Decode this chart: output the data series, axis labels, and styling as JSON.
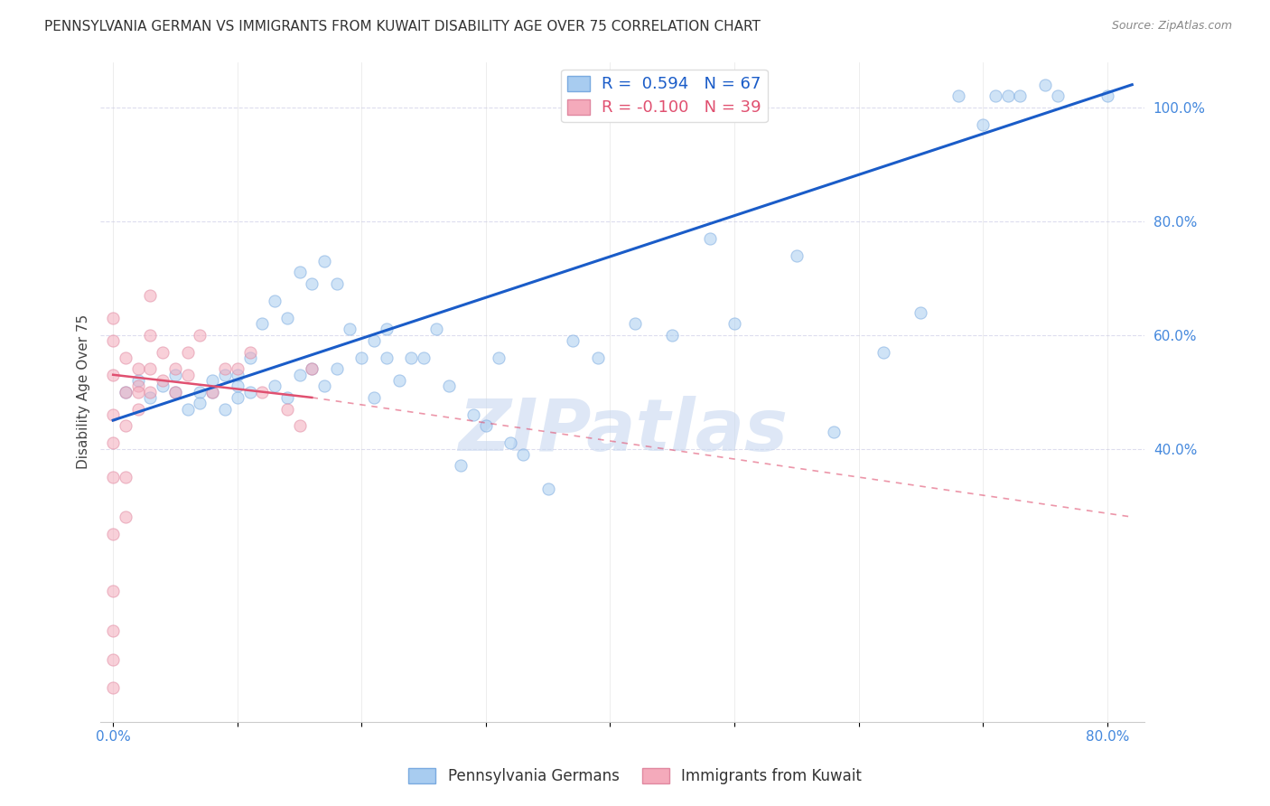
{
  "title": "PENNSYLVANIA GERMAN VS IMMIGRANTS FROM KUWAIT DISABILITY AGE OVER 75 CORRELATION CHART",
  "source": "Source: ZipAtlas.com",
  "ylabel": "Disability Age Over 75",
  "xlim": [
    -1,
    83
  ],
  "ylim": [
    -8,
    108
  ],
  "blue_color": "#A8CCF0",
  "blue_edge_color": "#7AAAE0",
  "pink_color": "#F4AABB",
  "pink_edge_color": "#E088A0",
  "blue_line_color": "#1A5CC8",
  "pink_line_color": "#E05070",
  "legend_text_blue": "R =  0.594   N = 67",
  "legend_text_pink": "R = -0.100   N = 39",
  "legend_label_blue": "Pennsylvania Germans",
  "legend_label_pink": "Immigrants from Kuwait",
  "watermark": "ZIPatlas",
  "watermark_color": "#C8D8F0",
  "title_fontsize": 11,
  "source_fontsize": 9,
  "blue_scatter_x": [
    1,
    2,
    3,
    4,
    5,
    5,
    6,
    7,
    7,
    8,
    8,
    9,
    9,
    10,
    10,
    10,
    11,
    11,
    12,
    13,
    13,
    14,
    14,
    15,
    15,
    16,
    16,
    17,
    17,
    18,
    18,
    19,
    20,
    21,
    21,
    22,
    22,
    23,
    24,
    25,
    26,
    27,
    28,
    29,
    30,
    31,
    32,
    33,
    35,
    37,
    39,
    42,
    45,
    48,
    50,
    55,
    58,
    62,
    65,
    68,
    70,
    71,
    72,
    73,
    75,
    76,
    80
  ],
  "blue_scatter_y": [
    50,
    52,
    49,
    51,
    53,
    50,
    47,
    50,
    48,
    52,
    50,
    53,
    47,
    53,
    51,
    49,
    56,
    50,
    62,
    66,
    51,
    63,
    49,
    71,
    53,
    69,
    54,
    73,
    51,
    69,
    54,
    61,
    56,
    59,
    49,
    61,
    56,
    52,
    56,
    56,
    61,
    51,
    37,
    46,
    44,
    56,
    41,
    39,
    33,
    59,
    56,
    62,
    60,
    77,
    62,
    74,
    43,
    57,
    64,
    102,
    97,
    102,
    102,
    102,
    104,
    102,
    102
  ],
  "pink_scatter_x": [
    0,
    0,
    0,
    0,
    0,
    0,
    0,
    0,
    0,
    0,
    0,
    1,
    1,
    1,
    1,
    1,
    2,
    2,
    2,
    2,
    3,
    3,
    3,
    3,
    4,
    4,
    5,
    5,
    6,
    6,
    7,
    8,
    9,
    10,
    11,
    12,
    14,
    15,
    16
  ],
  "pink_scatter_y": [
    -2,
    3,
    8,
    15,
    25,
    35,
    41,
    46,
    53,
    59,
    63,
    28,
    35,
    44,
    50,
    56,
    47,
    51,
    50,
    54,
    50,
    54,
    60,
    67,
    52,
    57,
    54,
    50,
    57,
    53,
    60,
    50,
    54,
    54,
    57,
    50,
    47,
    44,
    54
  ],
  "blue_line_x0": 0,
  "blue_line_x1": 82,
  "blue_line_y0": 45,
  "blue_line_y1": 104,
  "pink_line_x0": 0,
  "pink_line_x1": 82,
  "pink_line_y0": 53,
  "pink_line_y1": 28,
  "pink_solid_x1": 16,
  "pink_solid_y1": 49,
  "grid_color": "#DDDDEE",
  "bg_color": "#FFFFFF",
  "scatter_size": 90,
  "scatter_alpha": 0.55,
  "right_ytick_values": [
    40,
    60,
    80,
    100
  ],
  "right_ytick_labels": [
    "40.0%",
    "60.0%",
    "80.0%",
    "100.0%"
  ],
  "bottom_xtick_values": [
    0,
    10,
    20,
    30,
    40,
    50,
    60,
    70,
    80
  ],
  "bottom_xtick_labels": [
    "0.0%",
    "",
    "",
    "",
    "",
    "",
    "",
    "",
    "80.0%"
  ]
}
